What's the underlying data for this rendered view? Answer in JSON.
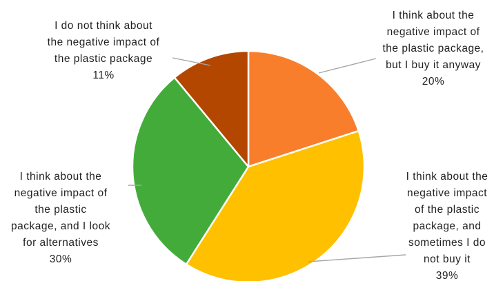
{
  "chart_data": {
    "type": "pie",
    "slices": [
      {
        "label_lines": [
          "I think about the",
          "negative impact of",
          "the plastic package,",
          "but I buy it anyway"
        ],
        "percent_text": "20%",
        "value": 20,
        "color": "#F97E2B"
      },
      {
        "label_lines": [
          "I think about the",
          "negative impact",
          "of the plastic",
          "package, and",
          "sometimes I do",
          "not buy it"
        ],
        "percent_text": "39%",
        "value": 39,
        "color": "#FFC000"
      },
      {
        "label_lines": [
          "I think about the",
          "negative impact of",
          "the plastic",
          "package, and I look",
          "for alternatives"
        ],
        "percent_text": "30%",
        "value": 30,
        "color": "#43AB3A"
      },
      {
        "label_lines": [
          "I do not think about",
          "the negative impact of",
          "the plastic package"
        ],
        "percent_text": "11%",
        "value": 11,
        "color": "#B34700"
      }
    ],
    "start_angle_deg": 0,
    "direction": "clockwise",
    "slice_border_color": "#ffffff",
    "leader_line_color": "#a6a6a6"
  }
}
